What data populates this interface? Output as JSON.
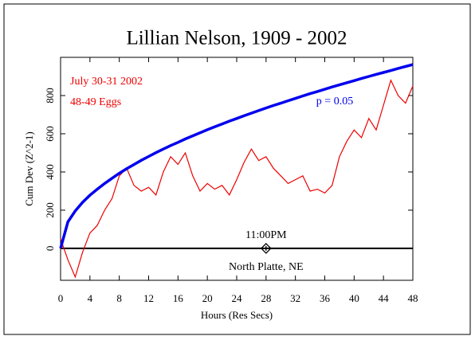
{
  "chart_data": {
    "type": "line",
    "title": "Lillian Nelson, 1909 - 2002",
    "annotations": [
      "July 30-31 2002",
      "48-49 Eggs"
    ],
    "x_label": "Hours (Res Secs)",
    "y_label": "Cum Dev (Z^2-1)",
    "x": [
      0,
      1,
      2,
      3,
      4,
      5,
      6,
      7,
      8,
      9,
      10,
      11,
      12,
      13,
      14,
      15,
      16,
      17,
      18,
      19,
      20,
      21,
      22,
      23,
      24,
      25,
      26,
      27,
      28,
      29,
      30,
      31,
      32,
      33,
      34,
      35,
      36,
      37,
      38,
      39,
      40,
      41,
      42,
      43,
      44,
      45,
      46,
      47,
      48
    ],
    "series": [
      {
        "name": "p = 0.05",
        "color": "#0000ee",
        "values": [
          0,
          139,
          196,
          241,
          278,
          310,
          340,
          367,
          393,
          417,
          439,
          461,
          481,
          501,
          520,
          538,
          555,
          573,
          589,
          605,
          621,
          636,
          651,
          666,
          680,
          694,
          708,
          721,
          735,
          748,
          760,
          773,
          785,
          798,
          810,
          821,
          833,
          845,
          856,
          867,
          878,
          889,
          900,
          911,
          921,
          931,
          942,
          952,
          962
        ]
      },
      {
        "name": "Cum Dev",
        "color": "#ee0000",
        "values": [
          50,
          -60,
          -150,
          -20,
          80,
          120,
          200,
          260,
          380,
          420,
          330,
          300,
          320,
          280,
          400,
          480,
          440,
          500,
          380,
          300,
          340,
          310,
          330,
          280,
          360,
          450,
          520,
          460,
          480,
          420,
          380,
          340,
          360,
          380,
          300,
          310,
          290,
          330,
          480,
          560,
          620,
          580,
          680,
          620,
          750,
          880,
          800,
          760,
          850
        ]
      }
    ],
    "event_marker": {
      "x": 28,
      "label": "11:00PM",
      "location": "North Platte, NE"
    },
    "xlim": [
      0,
      48
    ],
    "xticks": [
      0,
      4,
      8,
      12,
      16,
      20,
      24,
      28,
      32,
      36,
      40,
      44,
      48
    ],
    "ylim": [
      -167,
      1000
    ],
    "yticks": [
      0,
      200,
      400,
      600,
      800
    ]
  }
}
